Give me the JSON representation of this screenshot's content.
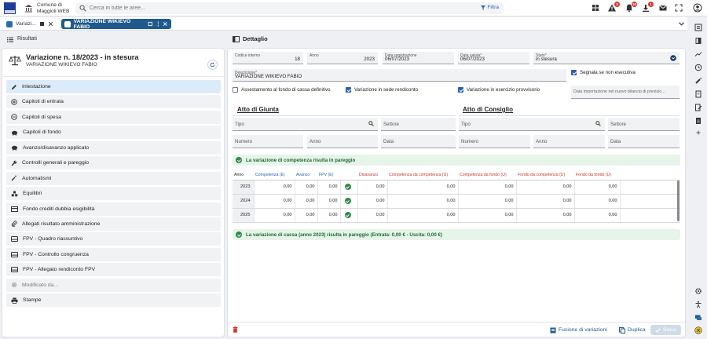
{
  "app": {
    "org_line1": "Comune di",
    "org_line2": "Maggioli WEB",
    "search_placeholder": "Cerca in tutte le aree...",
    "filter_label": "Filtra",
    "badges": {
      "alerts": "3",
      "bell": "10",
      "downloads": "1"
    }
  },
  "tabs": [
    {
      "label": "Variazi..."
    },
    {
      "label": "VARIAZIONE WIKIEVO FABIO"
    }
  ],
  "results_label": "Risultati",
  "detail_label": "Dettaglio",
  "variation": {
    "title": "Variazione n. 18/2023 - in stesura",
    "subtitle": "VARIAZIONE WIKIEVO FABIO"
  },
  "menu": [
    {
      "label": "Intestazione",
      "icon": "pencil-icon",
      "active": true
    },
    {
      "label": "Capitoli di entrata",
      "icon": "plus-circle-icon"
    },
    {
      "label": "Capitoli di spesa",
      "icon": "minus-circle-icon"
    },
    {
      "label": "Capitoli di fondo",
      "icon": "piggy-bank-icon"
    },
    {
      "label": "Avanzo/disavanzo applicato",
      "icon": "piggy-bank-icon"
    },
    {
      "label": "Controlli generali e pareggio",
      "icon": "wrench-icon"
    },
    {
      "label": "Automatismi",
      "icon": "magic-wand-icon"
    },
    {
      "label": "Equilibri",
      "icon": "boxes-icon"
    },
    {
      "label": "Fondo crediti dubbia esigibilità",
      "icon": "card-icon"
    },
    {
      "label": "Allegati risultato amministrazione",
      "icon": "paperclip-icon"
    },
    {
      "label": "FPV - Quadro riassuntivo",
      "icon": "drive-icon"
    },
    {
      "label": "FPV - Controllo congruenza",
      "icon": "drive-icon"
    },
    {
      "label": "FPV - Allegato rendiconto FPV",
      "icon": "drive-icon"
    },
    {
      "label": "Modificato da...",
      "icon": "gear-icon",
      "disabled": true
    },
    {
      "label": "Stampe",
      "icon": "printer-icon"
    }
  ],
  "form": {
    "codice_interno_label": "Codice interno",
    "codice_interno": "18",
    "anno_label": "Anno",
    "anno": "2023",
    "data_registrazione_label": "Data registrazione",
    "data_registrazione": "06/07/2023",
    "data_valuta_label": "Data valuta",
    "data_valuta": "06/07/2023",
    "stato_label": "Stato",
    "stato": "in stesura",
    "descrizione_label": "Descrizione",
    "descrizione": "VARIAZIONE WIKIEVO FABIO",
    "segnala_label": "Segnala se non esecutiva",
    "assestamento_label": "Assestamento al fondo di cassa definitivo",
    "sede_rendiconto_label": "Variazione in sede rendiconto",
    "esercizio_provvisorio_label": "Variazione in esercizio provvisorio",
    "data_importazione_placeholder": "Data importazione nel nuovo bilancio di previsio...",
    "required_mark": "*"
  },
  "atto_giunta": {
    "title": "Atto di Giunta",
    "tipo_label": "Tipo",
    "settore_label": "Settore",
    "numero_label": "Numero",
    "anno_label": "Anno",
    "data_label": "Data"
  },
  "atto_consiglio": {
    "title": "Atto di Consiglio",
    "tipo_label": "Tipo",
    "settore_label": "Settore",
    "numero_label": "Numero",
    "anno_label": "Anno",
    "data_label": "Data"
  },
  "notice_competenza": "La variazione di competenza risulta in pareggio",
  "notice_cassa": "La variazione di cassa (anno 2023) risulta in pareggio (Entrata: 0,00 € - Uscita: 0,00 €)",
  "table": {
    "headers": [
      "Anno",
      "Competenza (E)",
      "Avanzo",
      "FPV (E)",
      "",
      "Disavanzo",
      "Competenza da competenza (U)",
      "Competenza da fondo (U)",
      "Fondo da competenza (U)",
      "Fondo da fondo (U)"
    ],
    "rows": [
      {
        "year": "2023",
        "values": [
          "0,00",
          "0,00",
          "0,00",
          "0,00",
          "0,00",
          "0,00",
          "0,00",
          "0,00"
        ]
      },
      {
        "year": "2024",
        "values": [
          "0,00",
          "0,00",
          "0,00",
          "0,00",
          "0,00",
          "0,00",
          "0,00",
          "0,00"
        ]
      },
      {
        "year": "2025",
        "values": [
          "0,00",
          "0,00",
          "0,00",
          "0,00",
          "0,00",
          "0,00",
          "0,00",
          "0,00"
        ]
      }
    ]
  },
  "actions": {
    "fusione": "Fusione di variazioni",
    "duplica": "Duplica",
    "salva": "Salva"
  },
  "colors": {
    "brand": "#1f5a8f",
    "accent": "#2b5fb3",
    "ok": "#2e8b47",
    "danger": "#d9342b"
  }
}
